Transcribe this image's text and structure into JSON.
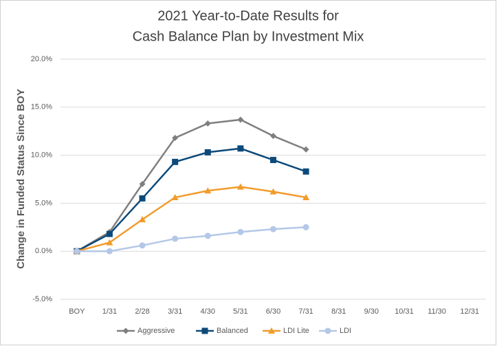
{
  "chart_data": {
    "type": "line",
    "title": [
      "2021 Year-to-Date Results for",
      "Cash Balance Plan by Investment Mix"
    ],
    "y_label": "Change in Funded Status Since BOY",
    "categories": [
      "BOY",
      "1/31",
      "2/28",
      "3/31",
      "4/30",
      "5/31",
      "6/30",
      "7/31",
      "8/31",
      "9/30",
      "10/31",
      "11/30",
      "12/31"
    ],
    "series": [
      {
        "name": "Aggressive",
        "color": "#7f7f7f",
        "marker": "diamond",
        "values": [
          0,
          2.0,
          7.0,
          11.8,
          13.3,
          13.7,
          12.0,
          10.6,
          null,
          null,
          null,
          null,
          null
        ]
      },
      {
        "name": "Balanced",
        "color": "#0d4a7a",
        "marker": "square",
        "values": [
          0,
          1.8,
          5.5,
          9.3,
          10.3,
          10.7,
          9.5,
          8.3,
          null,
          null,
          null,
          null,
          null
        ]
      },
      {
        "name": "LDI Lite",
        "color": "#f29b2a",
        "marker": "triangle",
        "values": [
          0,
          0.9,
          3.3,
          5.6,
          6.3,
          6.7,
          6.2,
          5.6,
          null,
          null,
          null,
          null,
          null
        ]
      },
      {
        "name": "LDI",
        "color": "#b4c7e7",
        "marker": "circle",
        "values": [
          0,
          0.0,
          0.6,
          1.3,
          1.6,
          2.0,
          2.3,
          2.5,
          null,
          null,
          null,
          null,
          null
        ]
      }
    ],
    "ylim": [
      -5,
      20
    ],
    "yticks": [
      {
        "value": -5,
        "label": "-5.0%"
      },
      {
        "value": 0,
        "label": "0.0%"
      },
      {
        "value": 5,
        "label": "5.0%"
      },
      {
        "value": 10,
        "label": "10.0%"
      },
      {
        "value": 15,
        "label": "15.0%"
      },
      {
        "value": 20,
        "label": "20.0%"
      }
    ],
    "grid": true,
    "legend": "bottom"
  }
}
